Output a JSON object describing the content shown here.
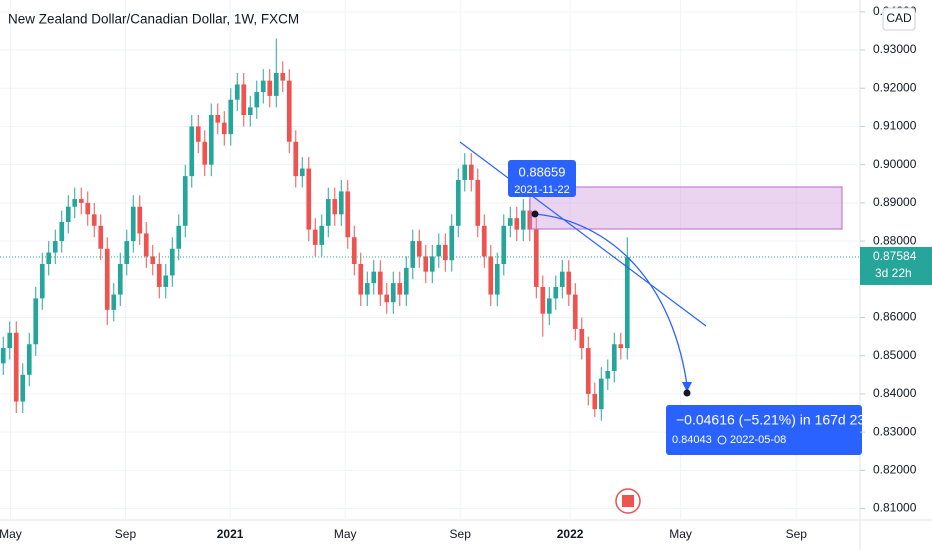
{
  "chart_data": {
    "type": "candlestick",
    "title": "New Zealand Dollar/Canadian Dollar, 1W, FXCM",
    "currency": "CAD",
    "up_color": "#26a69a",
    "down_color": "#ef5350",
    "open": [
      0.848,
      0.852,
      0.856,
      0.838,
      0.845,
      0.853,
      0.865,
      0.874,
      0.877,
      0.88,
      0.885,
      0.889,
      0.891,
      0.89,
      0.887,
      0.884,
      0.878,
      0.862,
      0.866,
      0.874,
      0.88,
      0.889,
      0.882,
      0.876,
      0.874,
      0.868,
      0.871,
      0.878,
      0.884,
      0.897,
      0.91,
      0.906,
      0.9,
      0.913,
      0.911,
      0.908,
      0.917,
      0.921,
      0.913,
      0.915,
      0.919,
      0.922,
      0.918,
      0.924,
      0.922,
      0.906,
      0.897,
      0.899,
      0.883,
      0.879,
      0.884,
      0.891,
      0.887,
      0.893,
      0.881,
      0.874,
      0.866,
      0.869,
      0.872,
      0.866,
      0.864,
      0.869,
      0.866,
      0.873,
      0.88,
      0.876,
      0.872,
      0.876,
      0.879,
      0.875,
      0.884,
      0.896,
      0.9,
      0.896,
      0.884,
      0.876,
      0.866,
      0.874,
      0.884,
      0.886,
      0.883,
      0.888,
      0.883,
      0.868,
      0.861,
      0.865,
      0.868,
      0.872,
      0.866,
      0.857,
      0.852,
      0.84,
      0.836,
      0.844,
      0.846,
      0.853,
      0.852
    ],
    "high": [
      0.855,
      0.859,
      0.859,
      0.848,
      0.856,
      0.868,
      0.877,
      0.88,
      0.883,
      0.888,
      0.892,
      0.894,
      0.894,
      0.893,
      0.89,
      0.887,
      0.881,
      0.869,
      0.877,
      0.883,
      0.892,
      0.892,
      0.885,
      0.879,
      0.877,
      0.874,
      0.881,
      0.887,
      0.9,
      0.913,
      0.913,
      0.909,
      0.916,
      0.916,
      0.914,
      0.92,
      0.924,
      0.924,
      0.918,
      0.922,
      0.925,
      0.925,
      0.933,
      0.927,
      0.925,
      0.909,
      0.902,
      0.902,
      0.886,
      0.887,
      0.894,
      0.894,
      0.896,
      0.896,
      0.884,
      0.877,
      0.872,
      0.875,
      0.875,
      0.869,
      0.872,
      0.872,
      0.876,
      0.883,
      0.883,
      0.879,
      0.879,
      0.882,
      0.882,
      0.887,
      0.899,
      0.903,
      0.903,
      0.899,
      0.887,
      0.879,
      0.877,
      0.887,
      0.889,
      0.889,
      0.891,
      0.891,
      0.886,
      0.871,
      0.868,
      0.871,
      0.875,
      0.875,
      0.869,
      0.86,
      0.855,
      0.843,
      0.847,
      0.849,
      0.856,
      0.856,
      0.881
    ],
    "low": [
      0.845,
      0.849,
      0.835,
      0.835,
      0.842,
      0.85,
      0.862,
      0.871,
      0.874,
      0.877,
      0.882,
      0.886,
      0.887,
      0.884,
      0.881,
      0.875,
      0.858,
      0.859,
      0.863,
      0.871,
      0.877,
      0.879,
      0.873,
      0.871,
      0.865,
      0.865,
      0.868,
      0.875,
      0.881,
      0.894,
      0.903,
      0.897,
      0.897,
      0.908,
      0.905,
      0.905,
      0.914,
      0.91,
      0.91,
      0.912,
      0.916,
      0.915,
      0.915,
      0.919,
      0.903,
      0.894,
      0.894,
      0.88,
      0.876,
      0.876,
      0.881,
      0.884,
      0.884,
      0.878,
      0.871,
      0.863,
      0.863,
      0.866,
      0.863,
      0.861,
      0.861,
      0.863,
      0.863,
      0.87,
      0.873,
      0.869,
      0.869,
      0.873,
      0.872,
      0.872,
      0.881,
      0.893,
      0.893,
      0.881,
      0.873,
      0.863,
      0.863,
      0.871,
      0.881,
      0.88,
      0.88,
      0.88,
      0.865,
      0.855,
      0.858,
      0.862,
      0.865,
      0.863,
      0.854,
      0.849,
      0.837,
      0.834,
      0.833,
      0.841,
      0.843,
      0.849,
      0.849
    ],
    "close": [
      0.852,
      0.856,
      0.838,
      0.845,
      0.853,
      0.865,
      0.874,
      0.877,
      0.88,
      0.885,
      0.889,
      0.891,
      0.89,
      0.887,
      0.884,
      0.878,
      0.862,
      0.866,
      0.874,
      0.88,
      0.889,
      0.882,
      0.876,
      0.874,
      0.868,
      0.871,
      0.878,
      0.884,
      0.897,
      0.91,
      0.906,
      0.9,
      0.913,
      0.911,
      0.908,
      0.917,
      0.921,
      0.913,
      0.915,
      0.919,
      0.922,
      0.918,
      0.924,
      0.922,
      0.906,
      0.897,
      0.899,
      0.883,
      0.879,
      0.884,
      0.891,
      0.887,
      0.893,
      0.881,
      0.874,
      0.866,
      0.869,
      0.872,
      0.866,
      0.864,
      0.869,
      0.866,
      0.873,
      0.88,
      0.876,
      0.872,
      0.876,
      0.879,
      0.875,
      0.884,
      0.896,
      0.9,
      0.896,
      0.884,
      0.876,
      0.866,
      0.874,
      0.884,
      0.886,
      0.883,
      0.888,
      0.883,
      0.868,
      0.861,
      0.865,
      0.868,
      0.872,
      0.866,
      0.857,
      0.852,
      0.84,
      0.836,
      0.844,
      0.846,
      0.853,
      0.852,
      0.8758
    ],
    "xlim": [
      -0.5,
      131.8
    ],
    "xticks": [
      {
        "value": 1.1,
        "label": "May"
      },
      {
        "value": 18.8,
        "label": "Sep"
      },
      {
        "value": 34.9,
        "label": "2021"
      },
      {
        "value": 52.6,
        "label": "May"
      },
      {
        "value": 70.3,
        "label": "Sep"
      },
      {
        "value": 87.2,
        "label": "2022"
      },
      {
        "value": 104.2,
        "label": "May"
      },
      {
        "value": 122,
        "label": "Sep"
      }
    ],
    "ylim": [
      0.807,
      0.9431
    ],
    "yticks": [
      {
        "value": 0.81,
        "label": "0.81000"
      },
      {
        "value": 0.82,
        "label": "0.82000"
      },
      {
        "value": 0.83,
        "label": "0.83000"
      },
      {
        "value": 0.84,
        "label": "0.84000"
      },
      {
        "value": 0.85,
        "label": "0.85000"
      },
      {
        "value": 0.86,
        "label": "0.86000"
      },
      {
        "value": 0.87,
        "label": "0.87000"
      },
      {
        "value": 0.88,
        "label": "0.88000"
      },
      {
        "value": 0.89,
        "label": "0.89000"
      },
      {
        "value": 0.9,
        "label": "0.90000"
      },
      {
        "value": 0.91,
        "label": "0.91000"
      },
      {
        "value": 0.92,
        "label": "0.92000"
      },
      {
        "value": 0.93,
        "label": "0.93000"
      },
      {
        "value": 0.94,
        "label": "0.94000"
      }
    ],
    "last_price": {
      "value": 0.87584,
      "label": "0.87584",
      "countdown": "3d 22h"
    },
    "anchor_label": {
      "price": "0.88659",
      "date": "2021-11-22"
    },
    "measure_label": {
      "change": "−0.04616 (−5.21%) in 167d 23",
      "price": "0.84043",
      "date": "2022-05-08"
    }
  }
}
